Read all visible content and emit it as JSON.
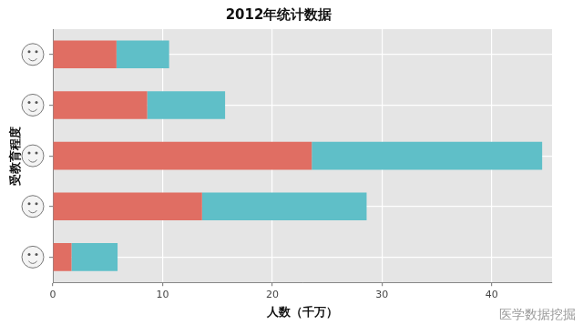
{
  "chart_data": {
    "type": "bar",
    "title": "2012年统计数据",
    "x_label": "人数（千万）",
    "y_label": "受教育程度",
    "annotation": "医学数据挖掘",
    "orientation": "horizontal",
    "stacked": true,
    "grid": true,
    "categories": [
      null,
      null,
      null,
      null,
      null
    ],
    "series": [
      {
        "color": "#E06E63",
        "values": [
          5.8,
          8.6,
          23.6,
          13.6,
          1.7
        ]
      },
      {
        "color": "#5FBFC8",
        "values": [
          4.8,
          7.1,
          21.0,
          15.0,
          4.2
        ]
      }
    ],
    "xlim": [
      0,
      45.5
    ],
    "xticks": [
      0,
      10,
      20,
      30,
      40
    ]
  }
}
